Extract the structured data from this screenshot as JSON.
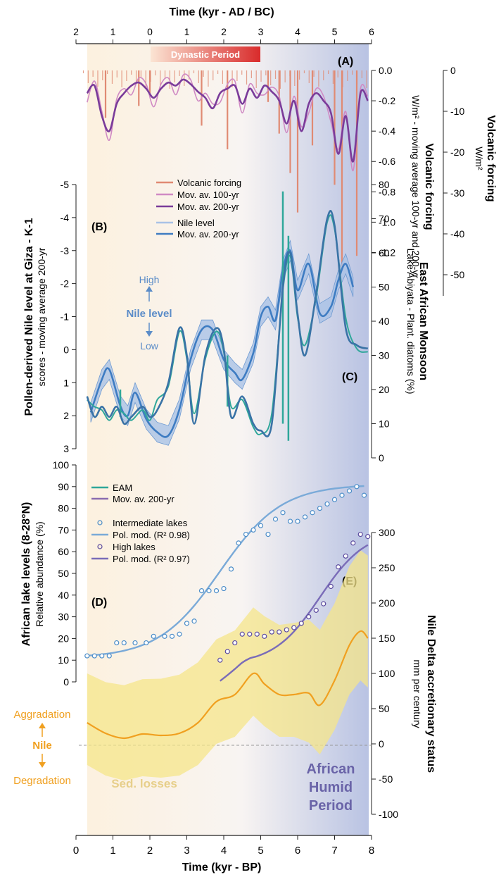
{
  "figure": {
    "top_axis_title": "Time (kyr - AD / BC)",
    "top_ticks": [
      "2",
      "1",
      "0",
      "1",
      "2",
      "3",
      "4",
      "5",
      "6"
    ],
    "bottom_axis_title": "Time (kyr - BP)",
    "bottom_ticks": [
      "0",
      "1",
      "2",
      "3",
      "4",
      "5",
      "6",
      "7",
      "8"
    ],
    "dynastic_label": "Dynastic Period",
    "humid_label_1": "African",
    "humid_label_2": "Humid",
    "humid_label_3": "Period",
    "colors": {
      "volcanic": "#E08A73",
      "mov100": "#D08AC4",
      "mov200": "#7A3C9A",
      "nile": "#3E7CC2",
      "nile_band": "#A9C2E6",
      "eam": "#2FA79A",
      "eam_smooth": "#3A73A6",
      "inter": "#4A8CC8",
      "high": "#5B4A9E",
      "delta": "#F0A020",
      "delta_band": "#F6E58A"
    }
  },
  "panels": {
    "A": {
      "label": "(A)",
      "ylabel_left_1": "Volcanic forcing",
      "ylabel_left_2": "W/m² - moving average 100-yr and 200-yr",
      "ylabel_right_1": "Volcanic forcing",
      "ylabel_right_2": "W/m²",
      "ticks_left": [
        "0.0",
        "-0.2",
        "-0.4",
        "-0.6",
        "-0.8",
        "-1.0",
        "-1.2"
      ],
      "ticks_right": [
        "0",
        "-10",
        "-20",
        "-30",
        "-40",
        "-50"
      ]
    },
    "B": {
      "label": "(B)",
      "ylabel_1": "Pollen-derived Nile level at Giza - K-1",
      "ylabel_2": "scores - moving average 200-yr",
      "ticks": [
        "-5",
        "-4",
        "-3",
        "-2",
        "-1",
        "0",
        "1",
        "2",
        "3"
      ],
      "high": "High",
      "mid": "Nile level",
      "low": "Low"
    },
    "C": {
      "label": "(C)",
      "ylabel_1": "East African Monsoon",
      "ylabel_2": "Lake Abiyata - Plant. diatoms (%)",
      "ticks": [
        "80",
        "70",
        "60",
        "50",
        "40",
        "30",
        "20",
        "10",
        "0"
      ]
    },
    "D": {
      "label": "(D)",
      "ylabel_1": "African lake levels (8-28°N)",
      "ylabel_2": "Relative abundance (%)",
      "ticks": [
        "100",
        "90",
        "80",
        "70",
        "60",
        "50",
        "40",
        "30",
        "20",
        "10",
        "0"
      ]
    },
    "E": {
      "label": "(E)",
      "ylabel_1": "Nile Delta accretionary status",
      "ylabel_2": "mm per century",
      "ticks": [
        "300",
        "250",
        "200",
        "150",
        "100",
        "50",
        "0",
        "-50",
        "-100"
      ],
      "aggradation": "Aggradation",
      "nile": "Nile",
      "degradation": "Degradation",
      "sed_losses": "Sed. losses"
    }
  },
  "legends": {
    "A": [
      "Volcanic forcing",
      "Mov. av. 100-yr",
      "Mov. av. 200-yr"
    ],
    "B": [
      "Nile level",
      "Mov. av. 200-yr"
    ],
    "C": [
      "EAM",
      "Mov. av. 200-yr"
    ],
    "D": [
      "Intermediate lakes",
      "Pol. mod. (R² 0.98)",
      "High lakes",
      "Pol. mod. (R² 0.97)"
    ]
  },
  "chart_data": [
    {
      "type": "line",
      "panel": "A",
      "xlabel": "Time (kyr - BP)",
      "xlim": [
        0,
        8
      ],
      "ylim": [
        -1.3,
        0
      ],
      "series": [
        {
          "name": "Mov. av. 200-yr",
          "x": [
            0.3,
            0.5,
            0.7,
            0.9,
            1.1,
            1.3,
            1.5,
            1.7,
            1.9,
            2.1,
            2.3,
            2.5,
            2.7,
            2.9,
            3.1,
            3.3,
            3.5,
            3.7,
            3.9,
            4.1,
            4.3,
            4.5,
            4.7,
            4.9,
            5.1,
            5.3,
            5.5,
            5.7,
            5.9,
            6.1,
            6.3,
            6.5,
            6.7,
            6.9,
            7.1,
            7.3,
            7.5,
            7.7,
            7.9
          ],
          "y": [
            -0.15,
            -0.1,
            -0.3,
            -0.4,
            -0.22,
            -0.15,
            -0.1,
            -0.08,
            -0.12,
            -0.18,
            -0.12,
            -0.08,
            -0.1,
            -0.06,
            -0.09,
            -0.14,
            -0.18,
            -0.25,
            -0.15,
            -0.12,
            -0.1,
            -0.22,
            -0.12,
            -0.18,
            -0.1,
            -0.14,
            -0.2,
            -0.35,
            -0.2,
            -0.4,
            -0.22,
            -0.15,
            -0.2,
            -0.28,
            -0.55,
            -0.3,
            -0.6,
            -0.15,
            -0.2
          ]
        },
        {
          "name": "Volcanic forcing",
          "x": [
            0.8,
            1.7,
            2.0,
            3.4,
            4.1,
            5.2,
            5.5,
            5.8,
            6.0,
            6.4,
            7.0,
            7.2,
            7.6
          ],
          "y": [
            -12,
            -9,
            -6,
            -14,
            -20,
            -8,
            -16,
            -26,
            -36,
            -19,
            -29,
            -50,
            -47
          ]
        }
      ]
    },
    {
      "type": "area",
      "panel": "B",
      "xlabel": "Time (kyr - BP)",
      "xlim": [
        0,
        8
      ],
      "ylim": [
        -5,
        3
      ],
      "series": [
        {
          "name": "Mov. av. 200-yr",
          "x": [
            0.4,
            0.7,
            0.9,
            1.2,
            1.4,
            1.6,
            1.9,
            2.2,
            2.5,
            2.8,
            3.1,
            3.4,
            3.7,
            4.0,
            4.3,
            4.5,
            4.8,
            5.0,
            5.2,
            5.4,
            5.6,
            5.8,
            6.0,
            6.3,
            6.6,
            6.9,
            7.1,
            7.3,
            7.5
          ],
          "y": [
            1.9,
            0.9,
            0.6,
            1.7,
            2.0,
            1.3,
            2.1,
            2.5,
            2.6,
            1.8,
            0.3,
            -0.6,
            -0.6,
            0.3,
            0.7,
            0.9,
            0.1,
            -1.0,
            -1.3,
            -0.9,
            -2.4,
            -3.0,
            -1.8,
            -2.6,
            -1.1,
            -1.3,
            -2.1,
            -2.6,
            -1.9
          ]
        }
      ]
    },
    {
      "type": "line",
      "panel": "C",
      "xlabel": "Time (kyr - BP)",
      "xlim": [
        0,
        8
      ],
      "ylim": [
        0,
        80
      ],
      "series": [
        {
          "name": "Mov. av. 200-yr",
          "x": [
            0.3,
            0.5,
            0.7,
            0.9,
            1.1,
            1.3,
            1.5,
            1.8,
            2.0,
            2.2,
            2.5,
            2.8,
            3.0,
            3.2,
            3.5,
            3.8,
            4.0,
            4.2,
            4.5,
            4.8,
            5.0,
            5.3,
            5.6,
            5.8,
            6.0,
            6.2,
            6.5,
            6.8,
            7.0,
            7.3,
            7.6,
            7.9
          ],
          "y": [
            18,
            12,
            15,
            12,
            15,
            10,
            12,
            15,
            12,
            14,
            22,
            38,
            30,
            10,
            30,
            38,
            32,
            12,
            18,
            10,
            8,
            10,
            50,
            60,
            42,
            30,
            48,
            70,
            68,
            38,
            33,
            32
          ]
        }
      ]
    },
    {
      "type": "scatter",
      "panel": "D",
      "xlabel": "Time (kyr - BP)",
      "xlim": [
        0,
        8
      ],
      "ylim": [
        0,
        100
      ],
      "series": [
        {
          "name": "Intermediate lakes",
          "x": [
            0.3,
            0.5,
            0.7,
            0.9,
            1.1,
            1.3,
            1.6,
            1.9,
            2.1,
            2.4,
            2.6,
            2.8,
            3.0,
            3.2,
            3.4,
            3.6,
            3.8,
            4.0,
            4.2,
            4.4,
            4.6,
            4.8,
            5.0,
            5.2,
            5.4,
            5.6,
            5.8,
            6.0,
            6.2,
            6.4,
            6.6,
            6.8,
            7.0,
            7.2,
            7.4,
            7.6,
            7.8
          ],
          "y": [
            12,
            12,
            12,
            12,
            18,
            18,
            18,
            18,
            21,
            21,
            21,
            22,
            27,
            28,
            42,
            42,
            42,
            43,
            52,
            64,
            68,
            70,
            72,
            68,
            75,
            78,
            74,
            74,
            76,
            78,
            80,
            82,
            84,
            86,
            88,
            90,
            86
          ]
        },
        {
          "name": "High lakes",
          "x": [
            3.9,
            4.1,
            4.3,
            4.5,
            4.7,
            4.9,
            5.1,
            5.3,
            5.5,
            5.7,
            5.9,
            6.1,
            6.3,
            6.5,
            6.7,
            6.9,
            7.1,
            7.3,
            7.5,
            7.7,
            7.9
          ],
          "y": [
            10,
            14,
            18,
            22,
            22,
            22,
            21,
            23,
            23,
            24,
            25,
            27,
            30,
            33,
            36,
            44,
            53,
            58,
            64,
            68,
            67
          ]
        }
      ]
    },
    {
      "type": "area",
      "panel": "E",
      "xlabel": "Time (kyr - BP)",
      "xlim": [
        0,
        8
      ],
      "ylim": [
        -100,
        300
      ],
      "series": [
        {
          "name": "Mov. av. 200-yr",
          "x": [
            0.3,
            0.8,
            1.3,
            1.8,
            2.3,
            2.8,
            3.3,
            3.8,
            4.3,
            4.8,
            5.1,
            5.5,
            5.9,
            6.3,
            6.6,
            7.0,
            7.4,
            7.7,
            7.9
          ],
          "y": [
            30,
            15,
            8,
            14,
            12,
            15,
            30,
            60,
            70,
            100,
            85,
            70,
            70,
            72,
            55,
            90,
            140,
            160,
            150
          ]
        }
      ]
    }
  ]
}
